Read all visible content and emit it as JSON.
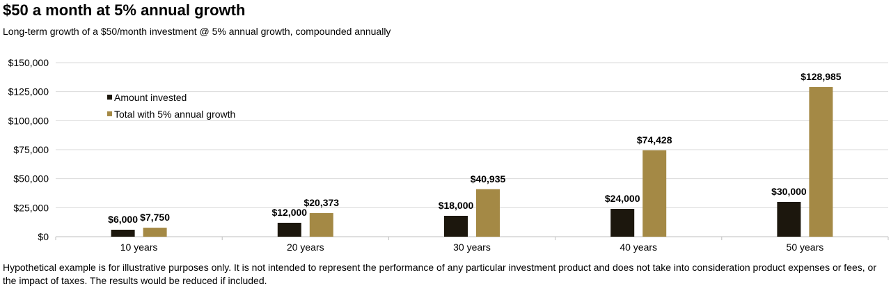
{
  "title": "$50 a month at 5% annual growth",
  "subtitle": "Long-term growth of a $50/month investment @ 5% annual growth, compounded annually",
  "footnote": "Hypothetical example is for illustrative purposes only. It is not intended to represent the performance of any particular investment product and does not take into consideration product expenses or fees, or the impact of taxes. The results would be reduced if included.",
  "chart_data": {
    "type": "bar",
    "categories": [
      "10 years",
      "20 years",
      "30 years",
      "40 years",
      "50 years"
    ],
    "series": [
      {
        "name": "Amount invested",
        "color": "#1c170d",
        "values": [
          6000,
          12000,
          18000,
          24000,
          30000
        ],
        "labels": [
          "$6,000",
          "$12,000",
          "$18,000",
          "$24,000",
          "$30,000"
        ]
      },
      {
        "name": "Total with 5% annual growth",
        "color": "#a48945",
        "values": [
          7750,
          20373,
          40935,
          74428,
          128985
        ],
        "labels": [
          "$7,750",
          "$20,373",
          "$40,935",
          "$74,428",
          "$128,985"
        ]
      }
    ],
    "ylim": [
      0,
      150000
    ],
    "yticks": [
      0,
      25000,
      50000,
      75000,
      100000,
      125000,
      150000
    ],
    "ytick_labels": [
      "$0",
      "$25,000",
      "$50,000",
      "$75,000",
      "$100,000",
      "$125,000",
      "$150,000"
    ],
    "grid": true,
    "legend_position": "top-left"
  }
}
